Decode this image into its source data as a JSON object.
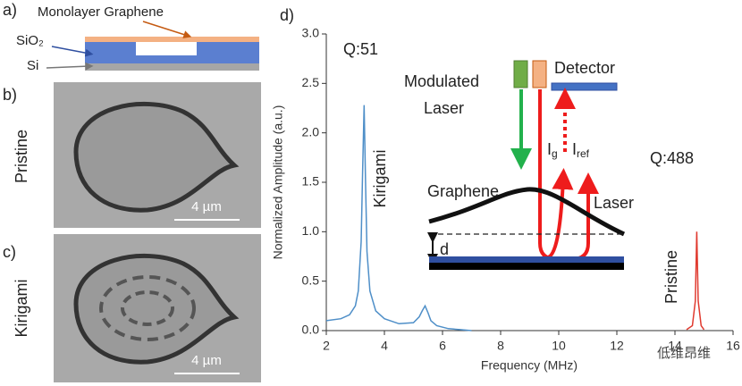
{
  "panel_a": {
    "label": "a)",
    "graphene": "Monolayer Graphene",
    "sio2": "SiO₂",
    "si": "Si"
  },
  "panel_b": {
    "label": "b)",
    "name": "Pristine",
    "scale": "4 µm"
  },
  "panel_c": {
    "label": "c)",
    "name": "Kirigami",
    "scale": "4 µm"
  },
  "panel_d": {
    "label": "d)"
  },
  "inset": {
    "modulated_laser_1": "Modulated",
    "modulated_laser_2": "Laser",
    "detector": "Detector",
    "ig": "I",
    "ig_sub": "g",
    "iref": "I",
    "iref_sub": "ref",
    "graphene": "Graphene",
    "laser": "Laser",
    "d": "d"
  },
  "watermark": "低维昂维",
  "chart_data": {
    "type": "line",
    "xlabel": "Frequency (MHz)",
    "ylabel": "Normalized Amplitude (a.u.)",
    "xlim": [
      2,
      16
    ],
    "ylim": [
      0,
      3
    ],
    "xticks": [
      2,
      4,
      6,
      8,
      10,
      12,
      14,
      16
    ],
    "yticks": [
      {
        "value": 0,
        "label": "0.0"
      },
      0.5,
      {
        "value": 1,
        "label": "1.0"
      },
      1.5,
      {
        "value": 2,
        "label": "2.0"
      },
      2.5,
      {
        "value": 3,
        "label": "3.0"
      }
    ],
    "annotations": {
      "q_kirigami": "Q:51",
      "q_pristine": "Q:488",
      "kirigami": "Kirigami",
      "pristine": "Pristine"
    },
    "series": [
      {
        "name": "Kirigami",
        "color": "#4f8fc8",
        "x": [
          2.0,
          2.5,
          2.8,
          3.0,
          3.1,
          3.2,
          3.25,
          3.3,
          3.35,
          3.4,
          3.5,
          3.7,
          4.0,
          4.5,
          5.0,
          5.2,
          5.3,
          5.4,
          5.5,
          5.6,
          5.8,
          6.2,
          6.6,
          7.0
        ],
        "values": [
          0.1,
          0.12,
          0.16,
          0.25,
          0.4,
          0.9,
          1.6,
          2.28,
          1.5,
          0.8,
          0.4,
          0.2,
          0.12,
          0.07,
          0.08,
          0.14,
          0.2,
          0.25,
          0.18,
          0.1,
          0.05,
          0.02,
          0.01,
          0.0
        ]
      },
      {
        "name": "Pristine",
        "color": "#e03a2f",
        "x": [
          14.4,
          14.6,
          14.7,
          14.75,
          14.8,
          14.9,
          15.0
        ],
        "values": [
          0.01,
          0.05,
          0.3,
          1.0,
          0.3,
          0.05,
          0.01
        ]
      }
    ]
  }
}
